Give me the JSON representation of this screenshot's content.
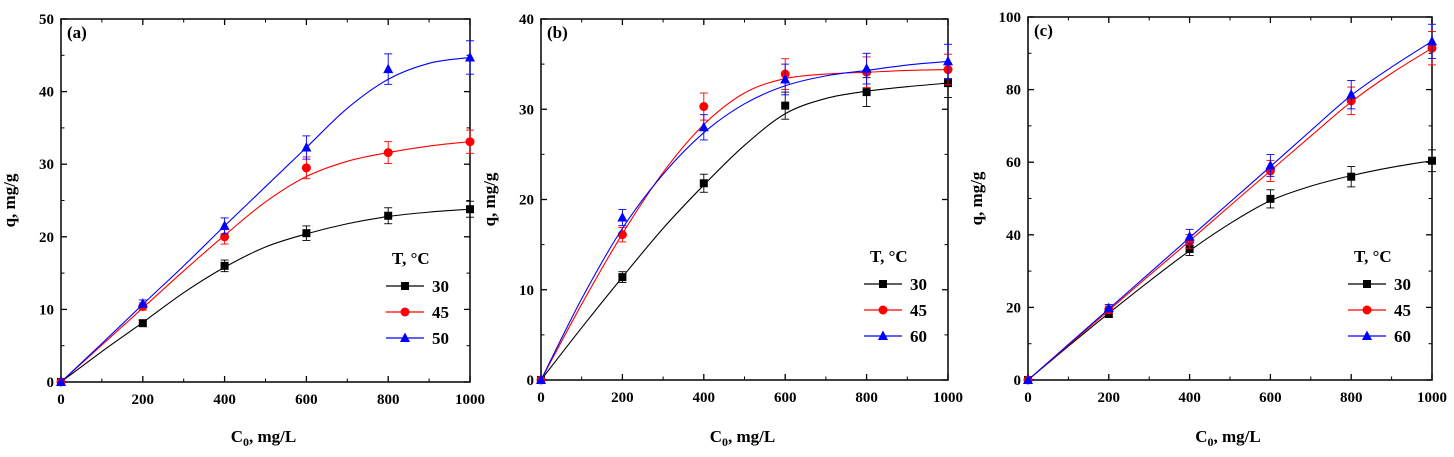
{
  "figure": {
    "xlabel_main": "C",
    "xlabel_sub": "0",
    "xlabel_unit": ", mg/L",
    "ylabel": "q, mg/g",
    "legend_title": "T, °C"
  },
  "chart_data": [
    {
      "type": "line",
      "panel_label": "(a)",
      "xlim": [
        0,
        1000
      ],
      "ylim": [
        0,
        50
      ],
      "xticks": [
        0,
        200,
        400,
        600,
        800,
        1000
      ],
      "yticks": [
        0,
        10,
        20,
        30,
        40,
        50
      ],
      "grid": false,
      "legend_position": "bottom-right",
      "series": [
        {
          "name": "30",
          "marker": "square",
          "color": "#000000",
          "x": [
            0,
            200,
            400,
            600,
            800,
            1000
          ],
          "y": [
            0,
            8.1,
            16.0,
            20.5,
            22.9,
            23.8
          ],
          "err": [
            0,
            0.4,
            0.8,
            1.0,
            1.1,
            1.1
          ],
          "fit": [
            [
              0,
              0
            ],
            [
              100,
              4.2
            ],
            [
              200,
              8.2
            ],
            [
              300,
              12.3
            ],
            [
              400,
              15.8
            ],
            [
              500,
              18.6
            ],
            [
              600,
              20.4
            ],
            [
              700,
              21.8
            ],
            [
              800,
              22.8
            ],
            [
              900,
              23.4
            ],
            [
              1000,
              23.8
            ]
          ]
        },
        {
          "name": "45",
          "marker": "circle",
          "color": "#ff0000",
          "x": [
            0,
            200,
            400,
            600,
            800,
            1000
          ],
          "y": [
            0,
            10.4,
            20.0,
            29.5,
            31.6,
            33.1
          ],
          "err": [
            0,
            0.5,
            1.0,
            1.5,
            1.5,
            1.6
          ],
          "fit": [
            [
              0,
              0
            ],
            [
              100,
              5.1
            ],
            [
              200,
              10.2
            ],
            [
              300,
              15.3
            ],
            [
              400,
              20.2
            ],
            [
              500,
              24.8
            ],
            [
              600,
              28.3
            ],
            [
              700,
              30.4
            ],
            [
              800,
              31.6
            ],
            [
              900,
              32.5
            ],
            [
              1000,
              33.1
            ]
          ]
        },
        {
          "name": "50",
          "marker": "triangle",
          "color": "#0000ff",
          "x": [
            0,
            200,
            400,
            600,
            800,
            1000
          ],
          "y": [
            0,
            10.8,
            21.5,
            32.3,
            43.1,
            44.7
          ],
          "err": [
            0,
            0.5,
            1.1,
            1.6,
            2.1,
            2.3
          ],
          "fit": [
            [
              0,
              0
            ],
            [
              100,
              5.3
            ],
            [
              200,
              10.7
            ],
            [
              300,
              16.0
            ],
            [
              400,
              21.5
            ],
            [
              500,
              26.9
            ],
            [
              600,
              32.3
            ],
            [
              700,
              37.7
            ],
            [
              800,
              41.7
            ],
            [
              900,
              43.9
            ],
            [
              1000,
              44.7
            ]
          ]
        }
      ]
    },
    {
      "type": "line",
      "panel_label": "(b)",
      "xlim": [
        0,
        1000
      ],
      "ylim": [
        0,
        40
      ],
      "xticks": [
        0,
        200,
        400,
        600,
        800,
        1000
      ],
      "yticks": [
        0,
        10,
        20,
        30,
        40
      ],
      "grid": false,
      "legend_position": "bottom-right",
      "series": [
        {
          "name": "30",
          "marker": "square",
          "color": "#000000",
          "x": [
            0,
            200,
            400,
            600,
            800,
            1000
          ],
          "y": [
            0,
            11.4,
            21.8,
            30.4,
            31.9,
            32.9
          ],
          "err": [
            0,
            0.6,
            1.0,
            1.5,
            1.6,
            1.6
          ],
          "fit": [
            [
              0,
              0
            ],
            [
              100,
              5.8
            ],
            [
              200,
              11.4
            ],
            [
              300,
              16.8
            ],
            [
              400,
              21.6
            ],
            [
              500,
              26.0
            ],
            [
              600,
              29.5
            ],
            [
              700,
              31.2
            ],
            [
              800,
              32.0
            ],
            [
              900,
              32.5
            ],
            [
              1000,
              32.9
            ]
          ]
        },
        {
          "name": "45",
          "marker": "circle",
          "color": "#ff0000",
          "x": [
            0,
            200,
            400,
            600,
            800,
            1000
          ],
          "y": [
            0,
            16.1,
            30.3,
            33.9,
            34.1,
            34.4
          ],
          "err": [
            0,
            0.8,
            1.5,
            1.7,
            1.7,
            1.7
          ],
          "fit": [
            [
              0,
              0
            ],
            [
              100,
              8.4
            ],
            [
              200,
              16.2
            ],
            [
              300,
              23.0
            ],
            [
              400,
              28.3
            ],
            [
              500,
              31.8
            ],
            [
              600,
              33.4
            ],
            [
              700,
              33.9
            ],
            [
              800,
              34.1
            ],
            [
              900,
              34.3
            ],
            [
              1000,
              34.4
            ]
          ]
        },
        {
          "name": "60",
          "marker": "triangle",
          "color": "#0000ff",
          "x": [
            0,
            200,
            400,
            600,
            800,
            1000
          ],
          "y": [
            0,
            18.0,
            28.0,
            33.3,
            34.5,
            35.3
          ],
          "err": [
            0,
            0.9,
            1.4,
            1.7,
            1.7,
            1.9
          ],
          "fit": [
            [
              0,
              0
            ],
            [
              100,
              9.0
            ],
            [
              200,
              16.8
            ],
            [
              300,
              22.8
            ],
            [
              400,
              27.4
            ],
            [
              500,
              30.6
            ],
            [
              600,
              32.6
            ],
            [
              700,
              33.7
            ],
            [
              800,
              34.3
            ],
            [
              900,
              34.9
            ],
            [
              1000,
              35.3
            ]
          ]
        }
      ]
    },
    {
      "type": "line",
      "panel_label": "(c)",
      "xlim": [
        0,
        1000
      ],
      "ylim": [
        0,
        100
      ],
      "xticks": [
        0,
        200,
        400,
        600,
        800,
        1000
      ],
      "yticks": [
        0,
        20,
        40,
        60,
        80,
        100
      ],
      "grid": false,
      "legend_position": "bottom-right",
      "series": [
        {
          "name": "30",
          "marker": "square",
          "color": "#000000",
          "x": [
            0,
            200,
            400,
            600,
            800,
            1000
          ],
          "y": [
            0,
            18.2,
            36.1,
            49.9,
            56.0,
            60.4
          ],
          "err": [
            0,
            1.0,
            1.8,
            2.5,
            2.8,
            3.0
          ],
          "fit": [
            [
              0,
              0
            ],
            [
              100,
              9.3
            ],
            [
              200,
              18.4
            ],
            [
              300,
              27.2
            ],
            [
              400,
              35.6
            ],
            [
              500,
              43.1
            ],
            [
              600,
              49.4
            ],
            [
              700,
              53.4
            ],
            [
              800,
              56.3
            ],
            [
              900,
              58.6
            ],
            [
              1000,
              60.4
            ]
          ]
        },
        {
          "name": "45",
          "marker": "circle",
          "color": "#ff0000",
          "x": [
            0,
            200,
            400,
            600,
            800,
            1000
          ],
          "y": [
            0,
            19.4,
            38.2,
            57.6,
            76.9,
            91.4
          ],
          "err": [
            0,
            1.0,
            1.9,
            2.9,
            3.8,
            4.6
          ],
          "fit": [
            [
              0,
              0
            ],
            [
              100,
              9.6
            ],
            [
              200,
              19.2
            ],
            [
              300,
              28.8
            ],
            [
              400,
              38.3
            ],
            [
              500,
              48.0
            ],
            [
              600,
              57.6
            ],
            [
              700,
              67.2
            ],
            [
              800,
              76.6
            ],
            [
              900,
              84.5
            ],
            [
              1000,
              91.4
            ]
          ]
        },
        {
          "name": "60",
          "marker": "triangle",
          "color": "#0000ff",
          "x": [
            0,
            200,
            400,
            600,
            800,
            1000
          ],
          "y": [
            0,
            19.8,
            39.5,
            59.1,
            78.6,
            93.3
          ],
          "err": [
            0,
            1.0,
            2.0,
            3.0,
            3.9,
            4.7
          ],
          "fit": [
            [
              0,
              0
            ],
            [
              100,
              9.8
            ],
            [
              200,
              19.6
            ],
            [
              300,
              29.4
            ],
            [
              400,
              39.2
            ],
            [
              500,
              49.0
            ],
            [
              600,
              58.8
            ],
            [
              700,
              68.7
            ],
            [
              800,
              78.4
            ],
            [
              900,
              86.2
            ],
            [
              1000,
              93.3
            ]
          ]
        }
      ]
    }
  ]
}
